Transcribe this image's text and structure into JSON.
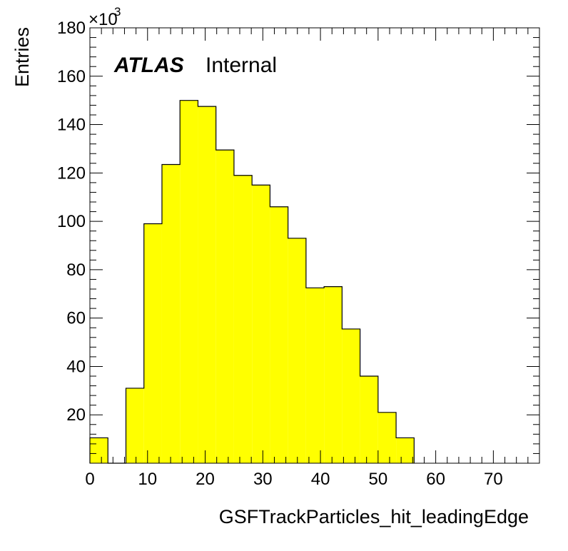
{
  "chart_data": {
    "type": "bar",
    "title": "",
    "xlabel": "GSFTrackParticles_hit_leadingEdge",
    "ylabel": "Entries",
    "y_multiplier": "×10",
    "y_multiplier_exp": "3",
    "xlim": [
      0,
      78
    ],
    "ylim": [
      0,
      180
    ],
    "x_ticks": [
      "0",
      "10",
      "20",
      "30",
      "40",
      "50",
      "60",
      "70"
    ],
    "y_ticks": [
      "20",
      "40",
      "60",
      "80",
      "100",
      "120",
      "140",
      "160",
      "180"
    ],
    "bin_edges": [
      0,
      3.125,
      6.25,
      9.375,
      12.5,
      15.625,
      18.75,
      21.875,
      25,
      28.125,
      31.25,
      34.375,
      37.5,
      40.625,
      43.75,
      46.875,
      50,
      53.125,
      56.25
    ],
    "values": [
      10.5,
      0,
      31,
      99,
      123.5,
      150,
      147.5,
      129.5,
      119,
      115,
      106,
      93,
      72.5,
      73,
      55.5,
      36,
      21,
      10.5
    ],
    "fill_color": "#ffff00",
    "edge_color": "#000000",
    "annotation": {
      "bold": "ATLAS",
      "plain": "Internal"
    }
  }
}
